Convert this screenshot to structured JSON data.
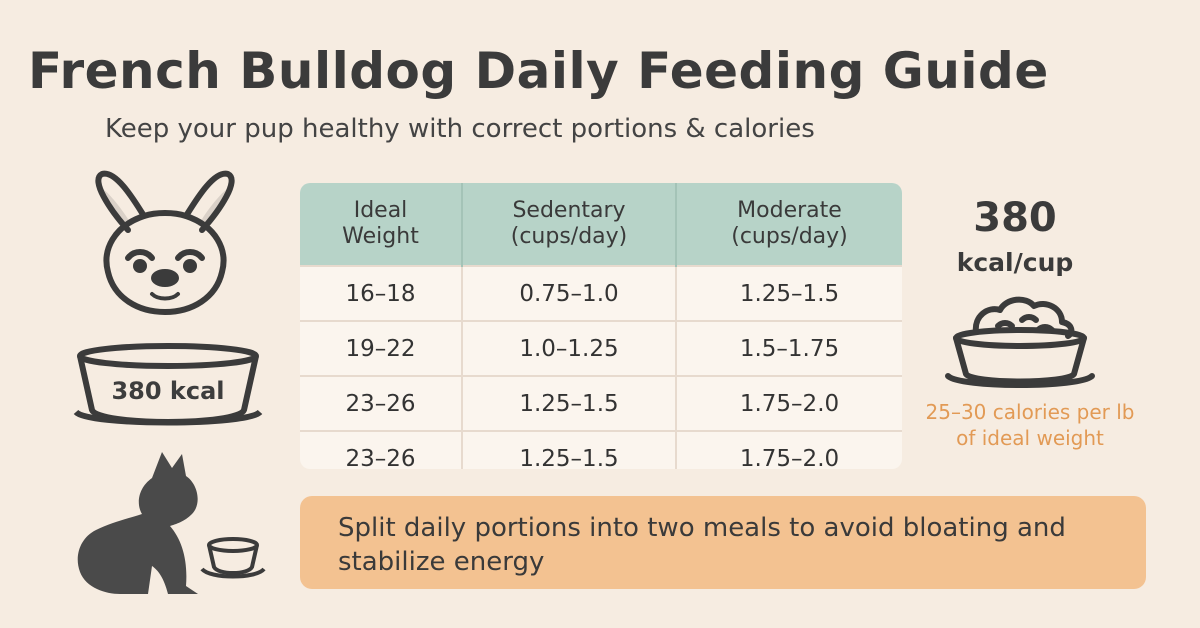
{
  "header": {
    "title": "French Bulldog Daily Feeding Guide",
    "subtitle": "Keep your pup healthy with correct portions & calories"
  },
  "left_panel": {
    "bowl_label": "380 kcal",
    "icons": [
      "dog-head-icon",
      "bowl-icon",
      "sitting-dog-icon",
      "small-bowl-icon"
    ]
  },
  "table": {
    "headers": [
      "Ideal\nWeight",
      "Sedentary\n(cups/day)",
      "Moderate\n(cups/day)"
    ],
    "rows": [
      [
        "16–18",
        "0.75–1.0",
        "1.25–1.5"
      ],
      [
        "19–22",
        "1.0–1.25",
        "1.5–1.75"
      ],
      [
        "23–26",
        "1.25–1.5",
        "1.75–2.0"
      ],
      [
        "23–26",
        "1.25–1.5",
        "1.75–2.0"
      ]
    ]
  },
  "right_panel": {
    "kcal_value": "380",
    "kcal_unit": "kcal/cup",
    "note": "25–30 calories per lb of ideal weight",
    "icons": [
      "food-bowl-icon"
    ]
  },
  "tip": {
    "text": "Split daily portions into two meals to avoid bloating and stabilize energy"
  },
  "colors": {
    "background": "#f6ece1",
    "table_header": "#b7d3c8",
    "table_body": "#fbf5ee",
    "tip_background": "#f3c291",
    "accent_text": "#e29a55",
    "dark": "#3b3b3b"
  }
}
